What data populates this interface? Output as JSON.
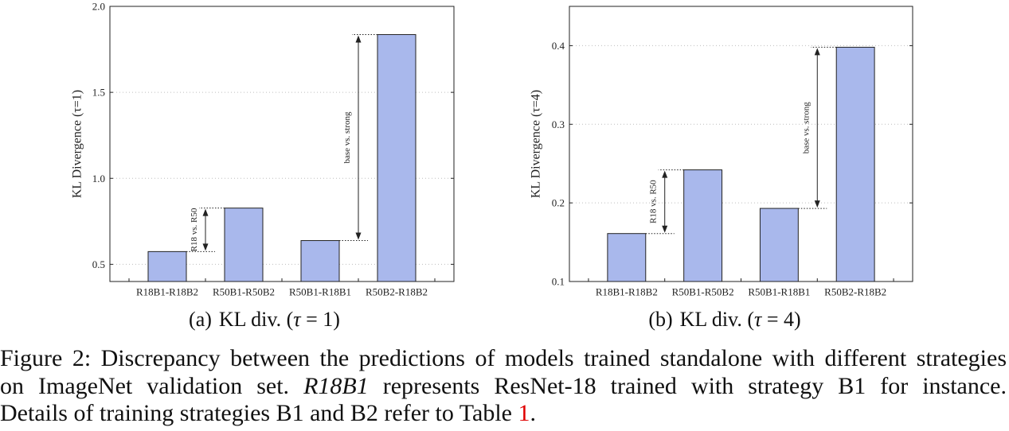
{
  "colors": {
    "bar_fill": "#a9b8ec",
    "bar_edge": "#222222",
    "axis": "#222222",
    "grid": "#bdbdbd",
    "ref_link": "#e00000"
  },
  "chart_data": [
    {
      "type": "bar",
      "categories": [
        "R18B1-R18B2",
        "R50B1-R50B2",
        "R50B1-R18B1",
        "R50B2-R18B2"
      ],
      "values": [
        0.574,
        0.827,
        0.638,
        1.836
      ],
      "title": "",
      "xlabel": "",
      "ylabel": "KL Divergence (τ=1)",
      "ylim": [
        0.4,
        2.0
      ],
      "yticks": [
        0.5,
        1.0,
        1.5,
        2.0
      ],
      "ytick_labels": [
        "0.5",
        "1.0",
        "1.5",
        "2.0"
      ],
      "grid": "horizontal dotted",
      "annotations": [
        {
          "label": "R18 vs. R50",
          "between": [
            "R18B1-R18B2",
            "R50B1-R50B2"
          ]
        },
        {
          "label": "base vs. strong",
          "between": [
            "R50B1-R18B1",
            "R50B2-R18B2"
          ]
        }
      ]
    },
    {
      "type": "bar",
      "categories": [
        "R18B1-R18B2",
        "R50B1-R50B2",
        "R50B1-R18B1",
        "R50B2-R18B2"
      ],
      "values": [
        0.161,
        0.242,
        0.193,
        0.398
      ],
      "title": "",
      "xlabel": "",
      "ylabel": "KL Divergence (τ=4)",
      "ylim": [
        0.1,
        0.45
      ],
      "yticks": [
        0.1,
        0.2,
        0.3,
        0.4
      ],
      "ytick_labels": [
        "0.1",
        "0.2",
        "0.3",
        "0.4"
      ],
      "grid": "horizontal dotted",
      "annotations": [
        {
          "label": "R18 vs. R50",
          "between": [
            "R18B1-R18B2",
            "R50B1-R50B2"
          ]
        },
        {
          "label": "base vs. strong",
          "between": [
            "R50B1-R18B1",
            "R50B2-R18B2"
          ]
        }
      ]
    }
  ],
  "figure": {
    "subcaptions": [
      {
        "tag": "(a)",
        "text": "KL div. (",
        "tau": "τ",
        "rest": " = 1)"
      },
      {
        "tag": "(b)",
        "text": "KL div. (",
        "tau": "τ",
        "rest": " = 4)"
      }
    ],
    "caption": {
      "line1": "Figure 2: Discrepancy between the predictions of models trained standalone with different strategies",
      "line2_start": "on ImageNet validation set. ",
      "line2_em": "R18B1",
      "line2_end": " represents ResNet-18 trained with strategy B1 for instance.",
      "line3_start": "Details of training strategies B1 and B2 refer to Table ",
      "line3_ref": "1",
      "line3_end": "."
    }
  }
}
